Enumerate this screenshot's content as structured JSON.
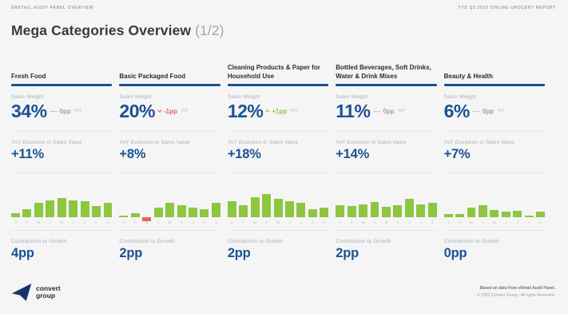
{
  "header": {
    "left_label": "ERETAIL AUDIT PANEL OVERVIEW",
    "right_label": "YTD Q3 2023 ONLINE GROCERY REPORT",
    "title": "Mega Categories Overview",
    "title_suffix": "(1/2)"
  },
  "labels": {
    "sales_weight": "Sales Weight",
    "yoy_evolution": "YoY Evolution in Sales Value",
    "contribution": "Contribution to Growth",
    "yoy_small": "YoY"
  },
  "colors": {
    "accent_blue": "#1b5292",
    "bar_green": "#8dc63f",
    "bar_red": "#e96359",
    "change_red": "#e25f5a",
    "change_green": "#8ec63f",
    "change_gray": "#9ba1a9",
    "text_dark": "#3a3a3c",
    "label_gray": "#a8adb5",
    "slide_bg": "#f5f5f6"
  },
  "months": [
    "J",
    "F",
    "M",
    "A",
    "M",
    "J",
    "J",
    "A",
    "S"
  ],
  "categories": [
    {
      "name": "Fresh Food",
      "sales_weight": "34%",
      "change": "0pp",
      "change_symbol": "—",
      "change_dir": "flat",
      "yoy_value": "+11%",
      "contribution": "4pp"
    },
    {
      "name": "Basic Packaged Food",
      "sales_weight": "20%",
      "change": "-1pp",
      "change_dir": "down",
      "yoy_value": "+8%",
      "contribution": "2pp"
    },
    {
      "name": "Cleaning Products & Paper for Household Use",
      "sales_weight": "12%",
      "change": "+1pp",
      "change_dir": "up",
      "yoy_value": "+18%",
      "contribution": "2pp"
    },
    {
      "name": "Bottled Beverages, Soft Drinks, Water & Drink Mixes",
      "sales_weight": "11%",
      "change": "0pp",
      "change_symbol": "—",
      "change_dir": "flat",
      "yoy_value": "+14%",
      "contribution": "2pp"
    },
    {
      "name": "Beauty & Health",
      "sales_weight": "6%",
      "change": "0pp",
      "change_symbol": "—",
      "change_dir": "flat",
      "yoy_value": "+7%",
      "contribution": "0pp"
    }
  ],
  "chart_data": [
    {
      "type": "bar",
      "title": "Fresh Food monthly trend",
      "categories": [
        "J",
        "F",
        "M",
        "A",
        "M",
        "J",
        "J",
        "A",
        "S"
      ],
      "values": [
        15,
        28,
        52,
        62,
        72,
        62,
        58,
        42,
        54
      ],
      "ylim": [
        0,
        100
      ],
      "bar_color": "#8dc63f",
      "grid": false,
      "legend": "none"
    },
    {
      "type": "bar",
      "title": "Basic Packaged Food monthly trend",
      "categories": [
        "J",
        "F",
        "M",
        "A",
        "M",
        "J",
        "J",
        "A",
        "S"
      ],
      "values": [
        6,
        16,
        -14,
        34,
        54,
        44,
        36,
        30,
        54
      ],
      "ylim": [
        -20,
        100
      ],
      "bar_color": "#8dc63f",
      "negative_color": "#e96359",
      "grid": false,
      "legend": "none"
    },
    {
      "type": "bar",
      "title": "Cleaning Products & Paper for Household Use monthly trend",
      "categories": [
        "J",
        "F",
        "M",
        "A",
        "M",
        "J",
        "J",
        "A",
        "S"
      ],
      "values": [
        58,
        44,
        74,
        86,
        68,
        58,
        52,
        28,
        34
      ],
      "ylim": [
        0,
        100
      ],
      "bar_color": "#8dc63f",
      "grid": false,
      "legend": "none"
    },
    {
      "type": "bar",
      "title": "Bottled Beverages, Soft Drinks, Water & Drink Mixes monthly trend",
      "categories": [
        "J",
        "F",
        "M",
        "A",
        "M",
        "J",
        "J",
        "A",
        "S"
      ],
      "values": [
        45,
        40,
        47,
        57,
        38,
        44,
        68,
        48,
        54
      ],
      "ylim": [
        0,
        100
      ],
      "bar_color": "#8dc63f",
      "grid": false,
      "legend": "none"
    },
    {
      "type": "bar",
      "title": "Beauty & Health monthly trend",
      "categories": [
        "J",
        "F",
        "M",
        "A",
        "M",
        "J",
        "J",
        "A",
        "S"
      ],
      "values": [
        12,
        12,
        34,
        44,
        27,
        21,
        24,
        7,
        20
      ],
      "ylim": [
        0,
        100
      ],
      "bar_color": "#8dc63f",
      "grid": false,
      "legend": "none"
    }
  ],
  "footer": {
    "logo_line1": "convert",
    "logo_line2": "group",
    "note_line1": "Based on data from eRetail Audit Panel.",
    "note_line2": "© 2023 Convert Group - All rights Reserved."
  }
}
